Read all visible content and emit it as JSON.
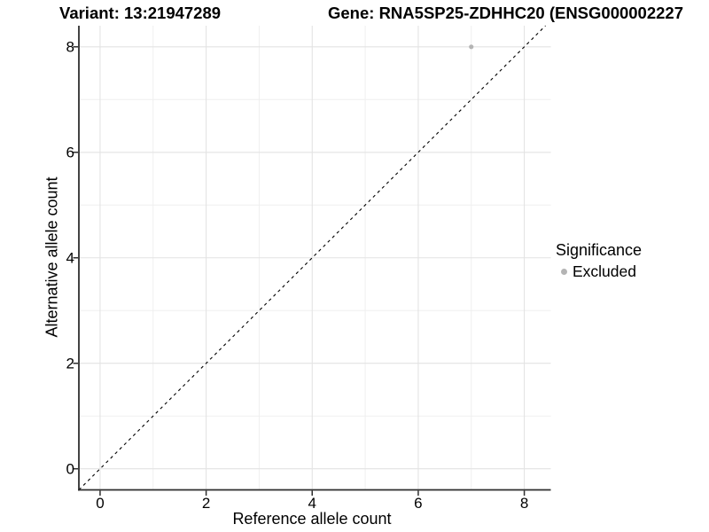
{
  "titles": {
    "variant": "Variant: 13:21947289",
    "gene": "Gene: RNA5SP25-ZDHHC20 (ENSG000002227"
  },
  "axes": {
    "x_label": "Reference allele count",
    "y_label": "Alternative allele count"
  },
  "legend": {
    "title": "Significance",
    "position": "right",
    "items": [
      {
        "label": "Excluded",
        "color": "#b4b4b4",
        "marker": "circle"
      }
    ]
  },
  "colors": {
    "background": "#ffffff",
    "axis": "#2e2e2e",
    "grid_major": "#e3e3e3",
    "grid_minor": "#efefef",
    "point": "#b4b4b4",
    "dashed_line": "#000000",
    "text": "#000000"
  },
  "chart_data": {
    "type": "scatter",
    "title_left": "Variant: 13:21947289",
    "title_right": "Gene: RNA5SP25-ZDHHC20 (ENSG000002227",
    "xlabel": "Reference allele count",
    "ylabel": "Alternative allele count",
    "points": [
      {
        "x": 7,
        "y": 8,
        "series": "Excluded"
      }
    ],
    "series": [
      {
        "name": "Excluded",
        "color": "#b4b4b4",
        "points": [
          [
            7,
            8
          ]
        ]
      }
    ],
    "xlim": [
      -0.4,
      8.5
    ],
    "ylim": [
      -0.4,
      8.4
    ],
    "xticks": [
      0,
      2,
      4,
      6,
      8
    ],
    "yticks": [
      0,
      2,
      4,
      6,
      8
    ],
    "minor_xticks": [
      1,
      3,
      5,
      7
    ],
    "minor_yticks": [
      1,
      3,
      5,
      7
    ],
    "grid": true,
    "legend_position": "right",
    "point_color": "#b4b4b4",
    "point_radius": 2.6,
    "reference_line": {
      "type": "identity",
      "slope": 1,
      "intercept": 0,
      "style": "dashed"
    }
  }
}
